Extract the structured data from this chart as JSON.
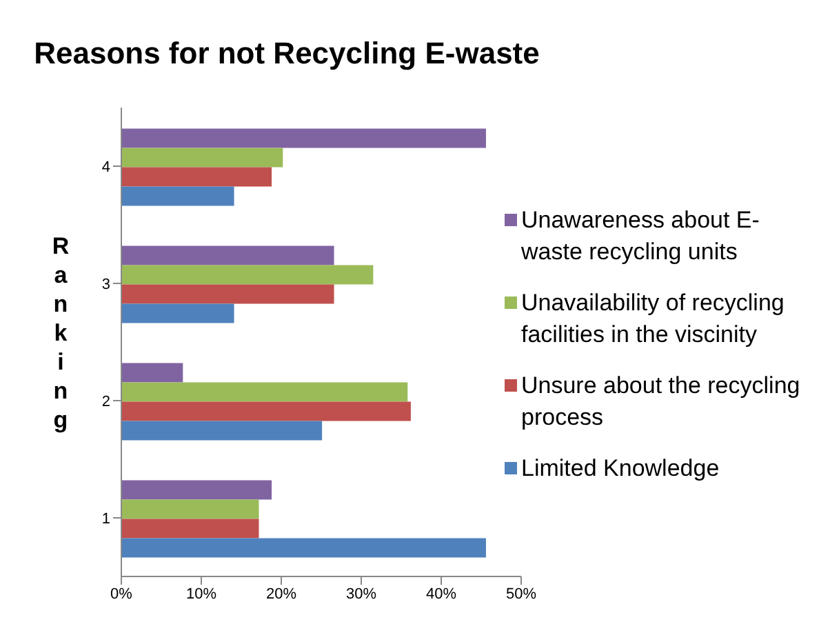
{
  "chart_data": {
    "type": "bar",
    "orientation": "horizontal",
    "title": "Reasons for not Recycling E-waste",
    "ylabel": "Ranking",
    "categories": [
      "4",
      "3",
      "2",
      "1"
    ],
    "series": [
      {
        "name": "Unawareness about E-waste recycling units",
        "color": "#8064a2",
        "values": [
          45.6,
          26.6,
          7.7,
          18.8
        ]
      },
      {
        "name": "Unavailability of recycling facilities in the viscinity",
        "color": "#9bbb59",
        "values": [
          20.2,
          31.5,
          35.8,
          17.2
        ]
      },
      {
        "name": "Unsure about the recycling process",
        "color": "#c0504d",
        "values": [
          18.8,
          26.6,
          36.2,
          17.2
        ]
      },
      {
        "name": "Limited Knowledge",
        "color": "#4f81bd",
        "values": [
          14.1,
          14.1,
          25.1,
          45.6
        ]
      }
    ],
    "xlim": [
      0,
      50
    ],
    "xticks": [
      {
        "value": 0,
        "label": "0%"
      },
      {
        "value": 10,
        "label": "10%"
      },
      {
        "value": 20,
        "label": "20%"
      },
      {
        "value": 30,
        "label": "30%"
      },
      {
        "value": 40,
        "label": "40%"
      },
      {
        "value": 50,
        "label": "50%"
      }
    ],
    "grid": false,
    "legend": "right"
  }
}
